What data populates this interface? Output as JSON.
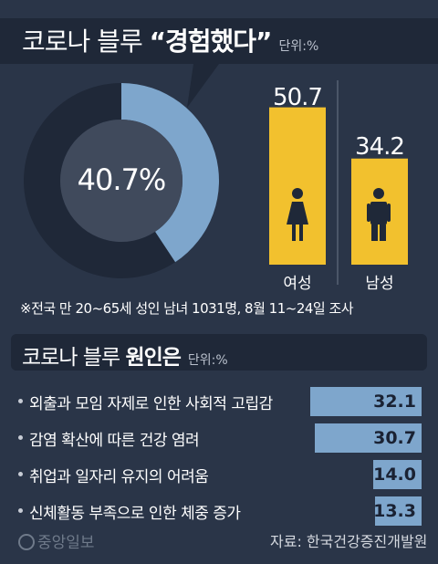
{
  "header": {
    "prefix": "코로나 블루 ",
    "emphasis": "“경험했다”",
    "unit": "단위:%"
  },
  "experience": {
    "overall_percent": "40.7%",
    "female_label": "여성",
    "male_label": "남성"
  },
  "note": "※전국 만 20~65세 성인 남녀 1031명, 8월 11~24일 조사",
  "causes": {
    "title_prefix": "코로나 블루 ",
    "title_emphasis": "원인은",
    "unit": "단위:%"
  },
  "footer": {
    "logo": "중앙일보",
    "source": "자료: 한국건강증진개발원"
  },
  "colors": {
    "background": "#2a3548",
    "donut_fill": "#7ea6cc",
    "donut_rest": "#1f2838",
    "gender_bar": "#f2c12e",
    "cause_bar": "#7ea6cc"
  },
  "icons": [
    "female-person-icon",
    "male-person-icon",
    "bullet-icon"
  ],
  "chart_data": [
    {
      "type": "pie",
      "values": [
        40.7,
        59.3
      ],
      "labels": [
        "경험했다",
        ""
      ],
      "center_label": "40.7%"
    },
    {
      "type": "bar",
      "categories": [
        "여성",
        "남성"
      ],
      "values": [
        50.7,
        34.2
      ],
      "value_labels": [
        "50.7",
        "34.2"
      ]
    },
    {
      "type": "bar",
      "orientation": "horizontal",
      "categories": [
        "외출과 모임 자제로 인한 사회적 고립감",
        "감염 확산에 따른 건강 염려",
        "취업과 일자리 유지의 어려움",
        "신체활동 부족으로 인한 체중 증가"
      ],
      "values": [
        32.1,
        30.7,
        14.0,
        13.3
      ],
      "value_labels": [
        "32.1",
        "30.7",
        "14.0",
        "13.3"
      ]
    }
  ]
}
